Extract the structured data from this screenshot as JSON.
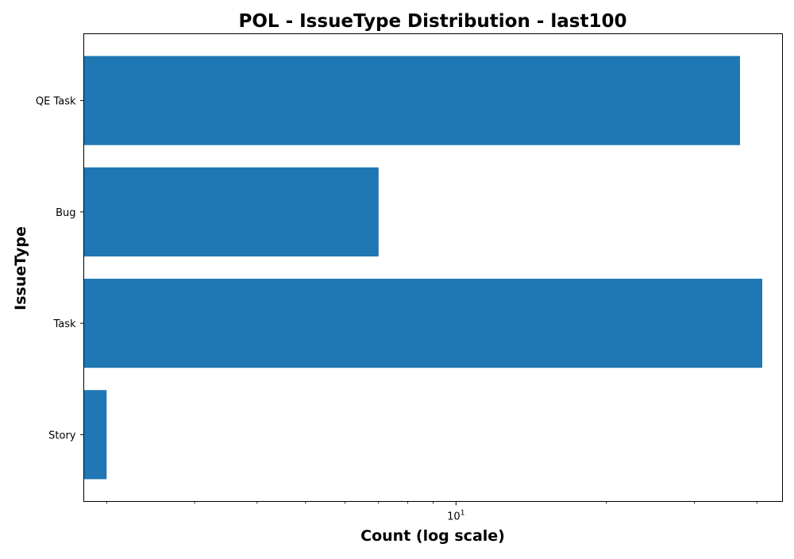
{
  "chart_data": {
    "type": "bar",
    "orientation": "horizontal",
    "title": "POL - IssueType Distribution - last100",
    "xlabel": "Count (log scale)",
    "ylabel": "IssueType",
    "x_scale": "log",
    "xlim": [
      1.8,
      45
    ],
    "categories": [
      "QE Task",
      "Bug",
      "Task",
      "Story"
    ],
    "values": [
      37,
      7,
      41,
      2
    ],
    "x_major_ticks": [
      {
        "value": 10,
        "base": "10",
        "exp": "1"
      }
    ],
    "x_minor_ticks": [
      2,
      3,
      4,
      5,
      6,
      7,
      8,
      9,
      20,
      30,
      40
    ],
    "bar_color": "#1f77b4",
    "grid": false,
    "legend": "none"
  }
}
